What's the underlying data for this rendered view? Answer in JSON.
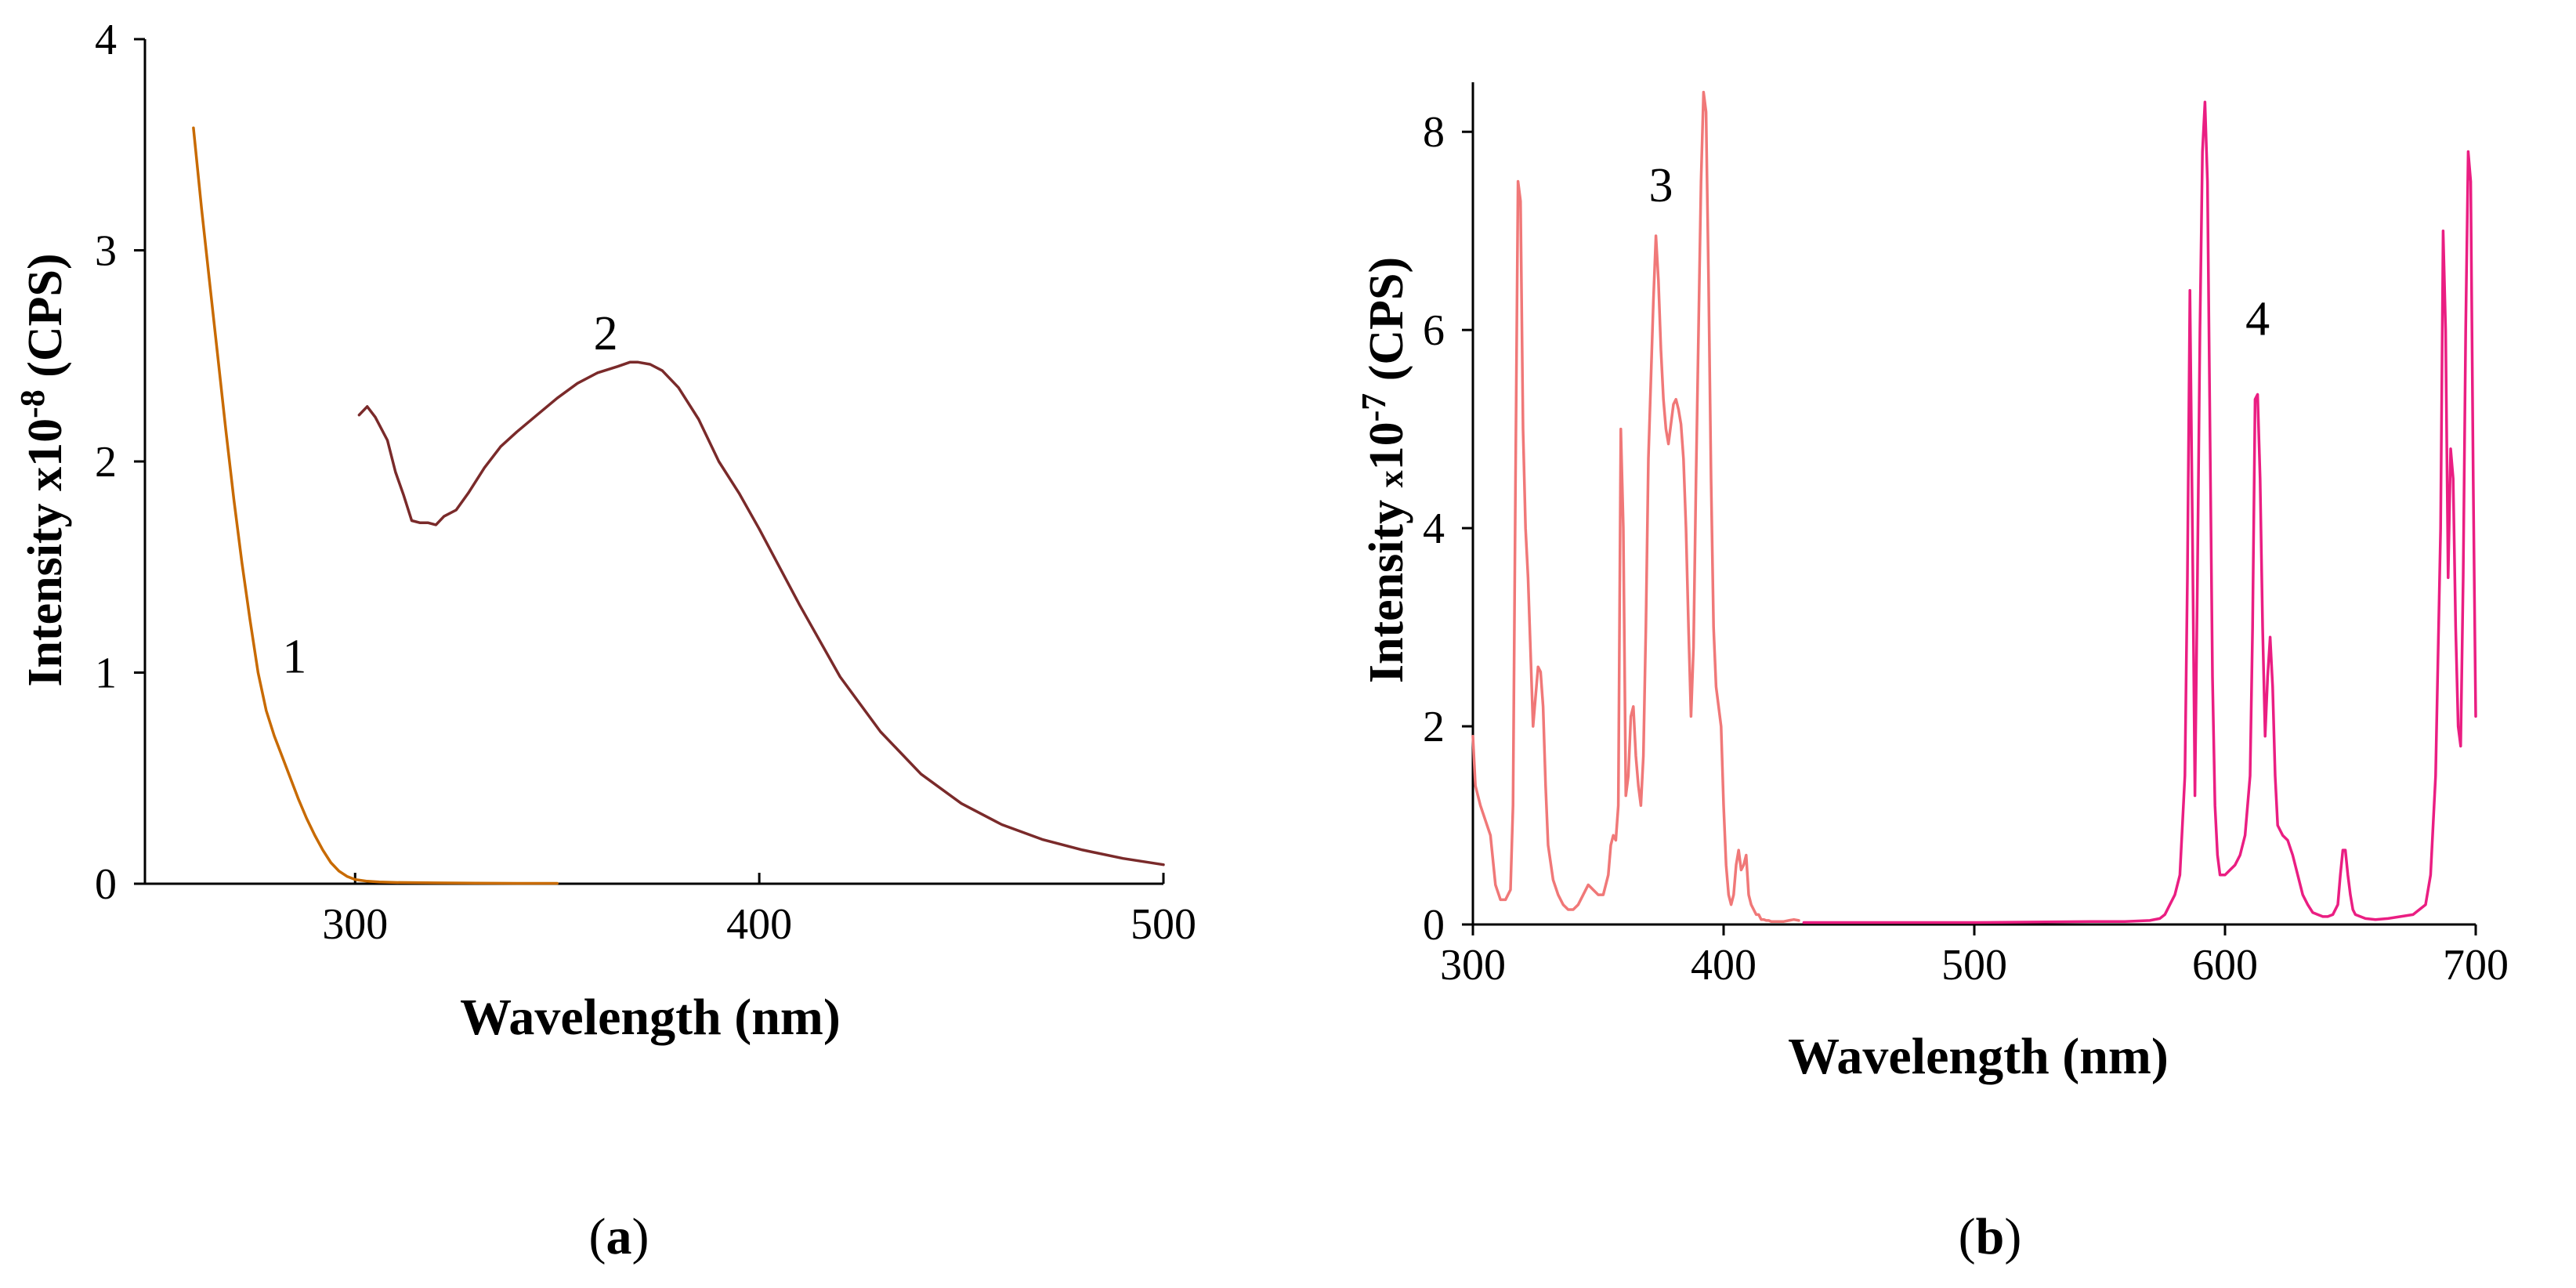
{
  "colors": {
    "background": "#ffffff",
    "axis": "#000000",
    "curve1": "#c86a00",
    "curve2": "#7a2a2a",
    "curve3": "#f07878",
    "curve4": "#ea1e82"
  },
  "chart_data": [
    {
      "id": "a",
      "type": "line",
      "panel_label": "a",
      "xlabel": "Wavelength (nm)",
      "ylabel_prefix": "Intensity x10",
      "ylabel_exponent": "-8",
      "ylabel_unit": " (CPS)",
      "xlim": [
        248,
        500
      ],
      "ylim": [
        0,
        4
      ],
      "xticks": [
        300,
        400,
        500
      ],
      "yticks": [
        0,
        1,
        2,
        3,
        4
      ],
      "grid": false,
      "series": [
        {
          "name": "1",
          "label_at": [
            285,
            1.0
          ],
          "color_key": "curve1",
          "x": [
            260,
            262,
            264,
            266,
            268,
            270,
            272,
            274,
            276,
            278,
            280,
            282,
            284,
            286,
            288,
            290,
            292,
            294,
            296,
            298,
            300,
            303,
            306,
            310,
            320,
            330,
            340,
            350
          ],
          "y": [
            3.58,
            3.2,
            2.85,
            2.5,
            2.15,
            1.82,
            1.52,
            1.25,
            1.0,
            0.82,
            0.7,
            0.6,
            0.5,
            0.4,
            0.31,
            0.23,
            0.16,
            0.1,
            0.06,
            0.035,
            0.02,
            0.012,
            0.008,
            0.006,
            0.004,
            0.003,
            0.002,
            0.002
          ]
        },
        {
          "name": "2",
          "label_at": [
            362,
            2.53
          ],
          "color_key": "curve2",
          "x": [
            301,
            303,
            305,
            308,
            310,
            312,
            314,
            316,
            318,
            320,
            322,
            325,
            328,
            332,
            336,
            340,
            345,
            350,
            355,
            360,
            365,
            368,
            370,
            373,
            376,
            380,
            385,
            390,
            395,
            400,
            410,
            420,
            430,
            440,
            450,
            460,
            470,
            480,
            490,
            500
          ],
          "y": [
            2.22,
            2.26,
            2.21,
            2.1,
            1.95,
            1.84,
            1.72,
            1.71,
            1.71,
            1.7,
            1.74,
            1.77,
            1.85,
            1.97,
            2.07,
            2.14,
            2.22,
            2.3,
            2.37,
            2.42,
            2.45,
            2.47,
            2.47,
            2.46,
            2.43,
            2.35,
            2.2,
            2.0,
            1.85,
            1.68,
            1.32,
            0.98,
            0.72,
            0.52,
            0.38,
            0.28,
            0.21,
            0.16,
            0.12,
            0.09
          ]
        }
      ],
      "curve_labels": [
        "1",
        "2"
      ]
    },
    {
      "id": "b",
      "type": "line",
      "panel_label": "b",
      "xlabel": "Wavelength (nm)",
      "ylabel_prefix": "Intensity ",
      "ylabel_small": "x",
      "ylabel_base": "10",
      "ylabel_exponent": "-7",
      "ylabel_unit": " (CPS)",
      "xlim": [
        300,
        700
      ],
      "ylim": [
        0,
        8.5
      ],
      "xticks": [
        300,
        400,
        500,
        600,
        700
      ],
      "yticks": [
        0,
        2,
        4,
        6,
        8
      ],
      "grid": false,
      "series": [
        {
          "name": "3",
          "label_at": [
            375,
            7.3
          ],
          "color_key": "curve3",
          "x": [
            300,
            301,
            303,
            305,
            307,
            309,
            311,
            313,
            315,
            316,
            317,
            318,
            319,
            320,
            321,
            322,
            324,
            326,
            327,
            328,
            329,
            330,
            332,
            334,
            336,
            338,
            340,
            342,
            344,
            346,
            348,
            350,
            352,
            354,
            355,
            356,
            357,
            358,
            359,
            360,
            361,
            362,
            363,
            364,
            365,
            366,
            367,
            368,
            369,
            370,
            371,
            372,
            373,
            374,
            375,
            376,
            377,
            378,
            379,
            380,
            381,
            382,
            383,
            384,
            385,
            386,
            387,
            388,
            389,
            390,
            391,
            392,
            393,
            394,
            395,
            396,
            397,
            398,
            399,
            400,
            401,
            402,
            403,
            404,
            405,
            406,
            407,
            408,
            409,
            410,
            411,
            412,
            413,
            414,
            415,
            416,
            417,
            418,
            419,
            420,
            422,
            424,
            426,
            428,
            430
          ],
          "y": [
            1.9,
            1.4,
            1.2,
            1.05,
            0.9,
            0.4,
            0.25,
            0.25,
            0.35,
            1.2,
            4.5,
            7.5,
            7.3,
            5.0,
            4.0,
            3.5,
            2.0,
            2.6,
            2.55,
            2.2,
            1.4,
            0.8,
            0.45,
            0.3,
            0.2,
            0.15,
            0.15,
            0.2,
            0.3,
            0.4,
            0.35,
            0.3,
            0.3,
            0.5,
            0.8,
            0.9,
            0.85,
            1.2,
            5.0,
            4.0,
            1.3,
            1.5,
            2.1,
            2.2,
            1.7,
            1.4,
            1.2,
            1.7,
            3.0,
            4.7,
            5.5,
            6.3,
            6.95,
            6.5,
            5.8,
            5.3,
            5.0,
            4.85,
            5.05,
            5.25,
            5.3,
            5.2,
            5.05,
            4.7,
            4.0,
            3.0,
            2.1,
            2.8,
            4.5,
            6.0,
            7.5,
            8.4,
            8.2,
            6.5,
            4.5,
            3.0,
            2.4,
            2.2,
            2.0,
            1.2,
            0.6,
            0.3,
            0.2,
            0.3,
            0.6,
            0.75,
            0.55,
            0.6,
            0.7,
            0.3,
            0.2,
            0.15,
            0.1,
            0.1,
            0.05,
            0.05,
            0.04,
            0.04,
            0.03,
            0.03,
            0.03,
            0.03,
            0.04,
            0.05,
            0.04
          ]
        },
        {
          "name": "4",
          "label_at": [
            613,
            5.95
          ],
          "color_key": "curve4",
          "x": [
            432,
            450,
            500,
            550,
            560,
            570,
            574,
            576,
            578,
            580,
            582,
            584,
            585,
            586,
            587,
            588,
            589,
            590,
            591,
            592,
            593,
            594,
            595,
            596,
            597,
            598,
            600,
            602,
            604,
            606,
            608,
            610,
            611,
            612,
            613,
            614,
            615,
            616,
            617,
            618,
            619,
            620,
            621,
            622,
            623,
            625,
            627,
            629,
            631,
            633,
            635,
            637,
            639,
            641,
            643,
            645,
            646,
            647,
            648,
            649,
            650,
            651,
            652,
            654,
            656,
            660,
            665,
            670,
            675,
            680,
            682,
            684,
            686,
            687,
            688,
            689,
            690,
            691,
            692,
            693,
            694,
            695,
            696,
            697,
            698,
            699,
            700
          ],
          "y": [
            0.02,
            0.02,
            0.02,
            0.03,
            0.03,
            0.04,
            0.06,
            0.1,
            0.2,
            0.3,
            0.5,
            1.5,
            3.5,
            6.4,
            4.0,
            1.3,
            3.5,
            6.0,
            7.8,
            8.3,
            7.5,
            5.0,
            2.5,
            1.2,
            0.7,
            0.5,
            0.5,
            0.55,
            0.6,
            0.7,
            0.9,
            1.5,
            3.0,
            5.3,
            5.35,
            4.5,
            3.0,
            1.9,
            2.5,
            2.9,
            2.4,
            1.5,
            1.0,
            0.95,
            0.9,
            0.85,
            0.7,
            0.5,
            0.3,
            0.2,
            0.12,
            0.1,
            0.08,
            0.08,
            0.1,
            0.2,
            0.5,
            0.75,
            0.75,
            0.5,
            0.3,
            0.15,
            0.1,
            0.08,
            0.06,
            0.05,
            0.06,
            0.08,
            0.1,
            0.2,
            0.5,
            1.5,
            4.0,
            7.0,
            6.0,
            3.5,
            4.8,
            4.5,
            3.0,
            2.0,
            1.8,
            3.5,
            6.0,
            7.8,
            7.5,
            4.5,
            2.1
          ]
        }
      ],
      "curve_labels": [
        "3",
        "4"
      ]
    }
  ]
}
